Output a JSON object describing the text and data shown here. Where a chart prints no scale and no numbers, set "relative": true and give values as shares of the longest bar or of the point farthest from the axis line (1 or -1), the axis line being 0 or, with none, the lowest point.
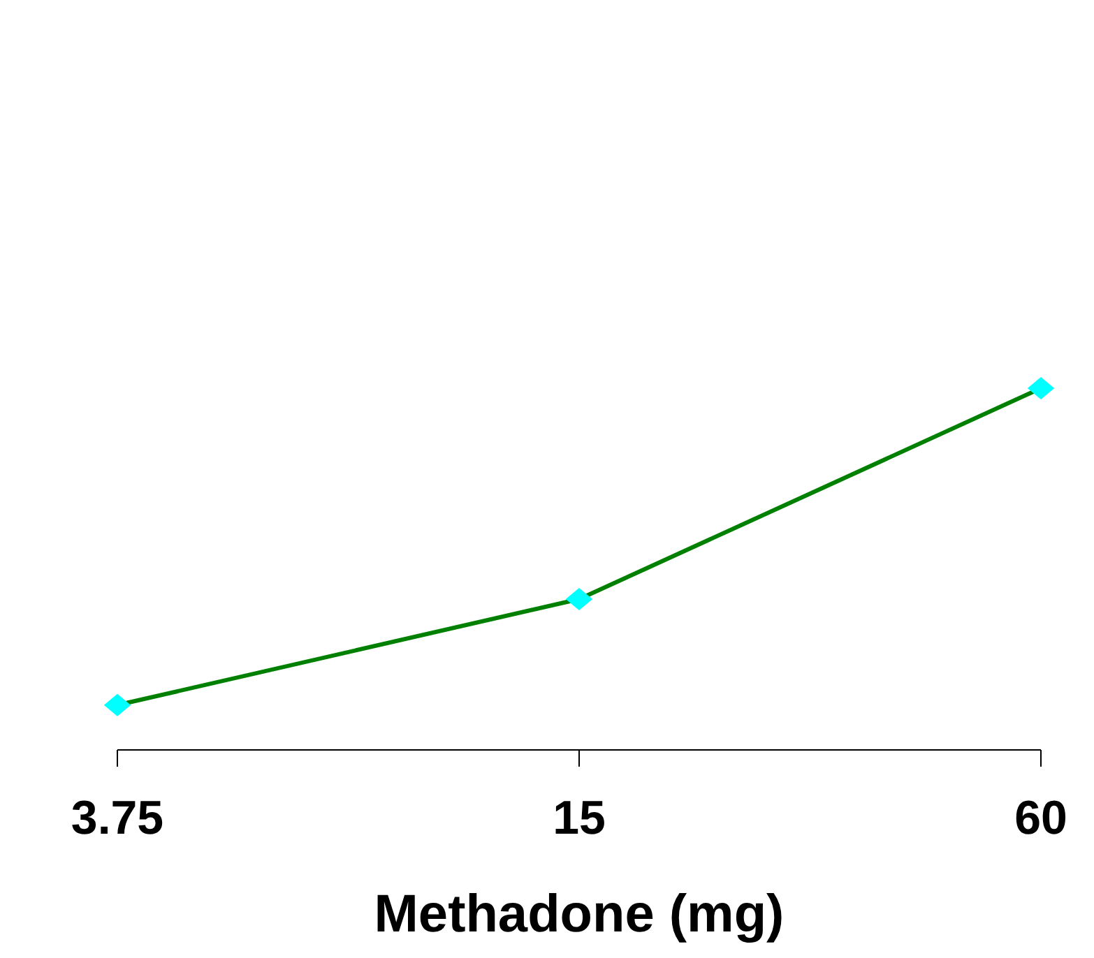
{
  "chart_data": {
    "type": "line",
    "xlabel": "Methadone (mg)",
    "categories": [
      "3.75",
      "15",
      "60"
    ],
    "relative": true,
    "series": [
      {
        "color": "#008000",
        "colors": [
          "#00ffff",
          "#00ffff",
          "#00ffff"
        ],
        "values": [
          0.124,
          0.417,
          1
        ]
      }
    ],
    "marker": "diamond",
    "line_style": "solid",
    "grid": false,
    "legend": false
  }
}
